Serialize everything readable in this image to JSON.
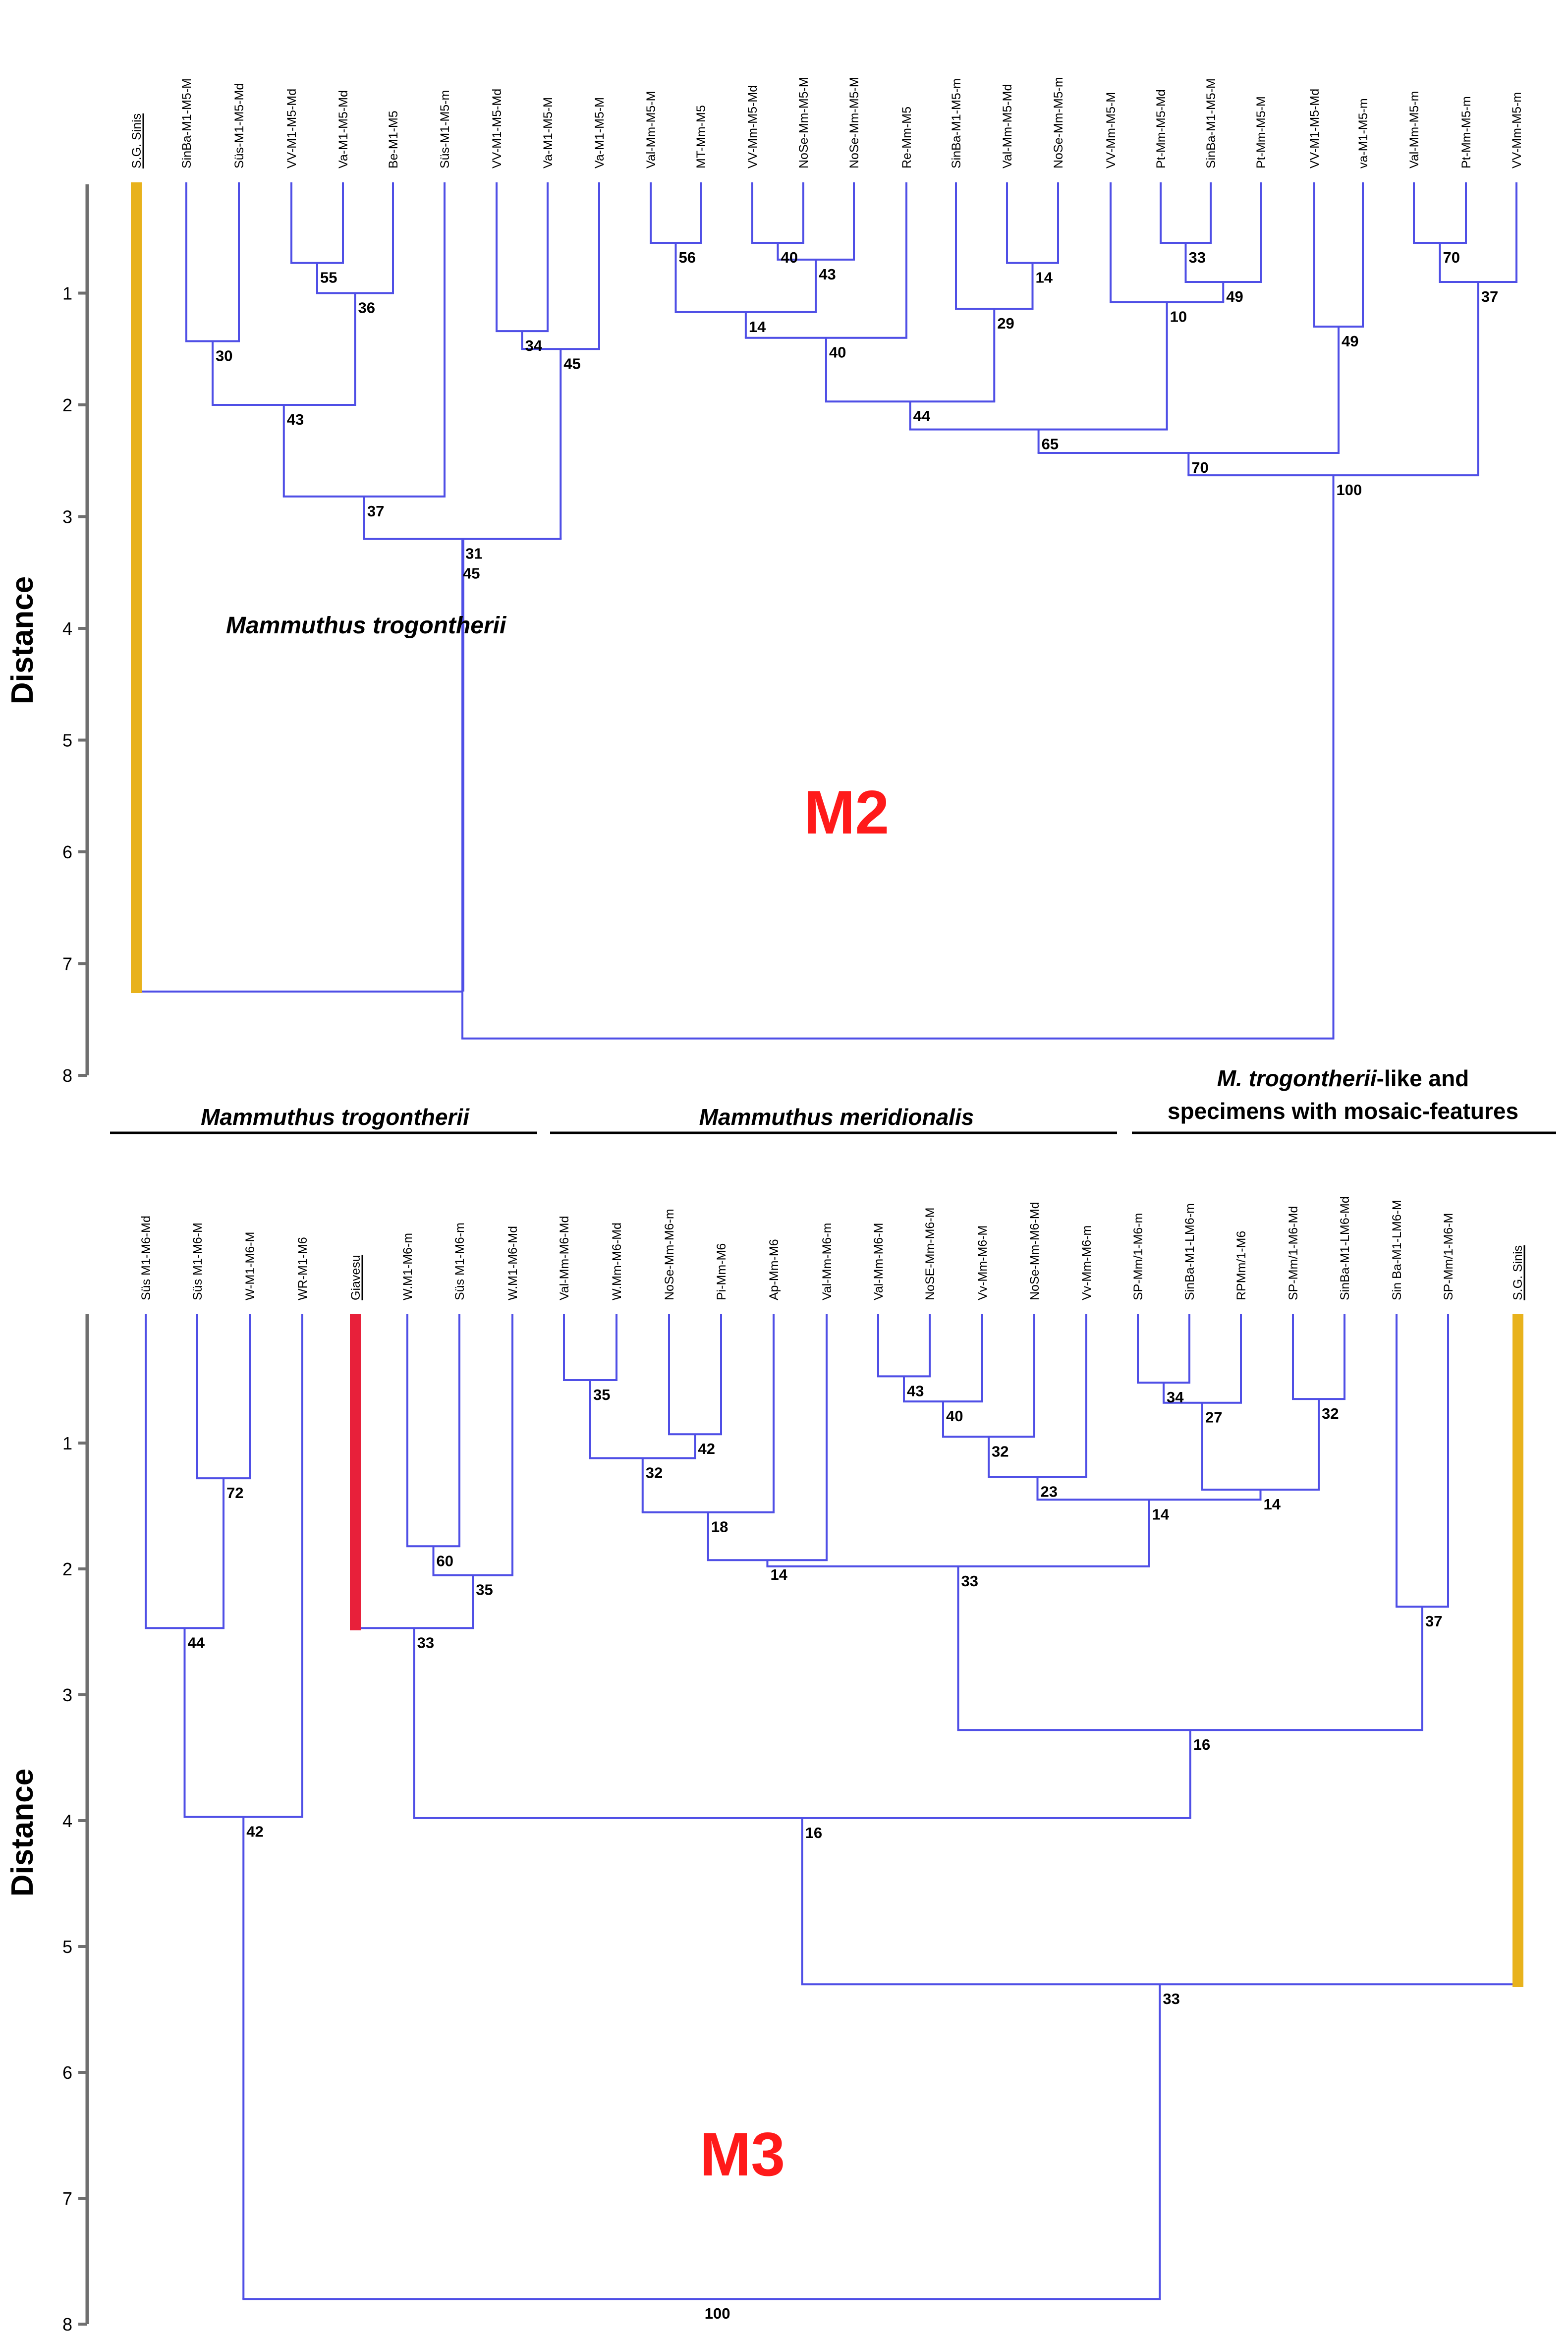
{
  "colors": {
    "branch": "#4f4fe6",
    "axis": "#6f6f6f",
    "outgroup_bar": "#e8b21c",
    "giavesu_bar": "#e8203a",
    "panel_label": "#ff1a1a"
  },
  "m2": {
    "label": "M2",
    "axis_title": "Distance",
    "taxon_label": "Mammuthus trogontherii",
    "ticks": [
      "1",
      "2",
      "3",
      "4",
      "5",
      "6",
      "7",
      "8"
    ],
    "leaves": [
      "S.G. Sinis",
      "SinBa-M1-M5-M",
      "Süs-M1-M5-Md",
      "VV-M1-M5-Md",
      "Va-M1-M5-Md",
      "Be-M1-M5",
      "Süs-M1-M5-m",
      "VV-M1-M5-Md",
      "Va-M1-M5-M",
      "Va-M1-M5-M",
      "Val-Mm-M5-M",
      "MT-Mm-M5",
      "VV-Mm-M5-Md",
      "NoSe-Mm-M5-M",
      "NoSe-Mm-M5-M",
      "Re-Mm-M5",
      "SinBa-M1-M5-m",
      "Val-Mm-M5-Md",
      "NoSe-Mm-M5-m",
      "VV-Mm-M5-M",
      "Pt-Mm-M5-Md",
      "SinBa-M1-M5-M",
      "Pt-Mm-M5-M",
      "VV-M1-M5-Md",
      "va-M1-M5-m",
      "Val-Mm-M5-m",
      "Pt-Mm-M5-m",
      "VV-Mm-M5-m"
    ],
    "bootstrap": [
      "55",
      "36",
      "30",
      "43",
      "37",
      "34",
      "45",
      "31",
      "45",
      "56",
      "40",
      "43",
      "14",
      "40",
      "14",
      "29",
      "44",
      "33",
      "49",
      "10",
      "65",
      "49",
      "70",
      "37",
      "70",
      "100"
    ]
  },
  "m3": {
    "label": "M3",
    "axis_title": "Distance",
    "groups": {
      "trogontherii": "Mammuthus trogontherii",
      "meridionalis": "Mammuthus meridionalis",
      "mosaic_line1_italic": "M. trogontherii",
      "mosaic_line1_rest": "-like and",
      "mosaic_line2": "specimens with mosaic-features"
    },
    "ticks": [
      "1",
      "2",
      "3",
      "4",
      "5",
      "6",
      "7",
      "8"
    ],
    "leaves": [
      "Süs M1-M6-Md",
      "Süs M1-M6-M",
      "W-M1-M6-M",
      "WR-M1-M6",
      "Giavesu",
      "W.M1-M6-m",
      "Süs M1-M6-m",
      "W.M1-M6-Md",
      "Val-Mm-M6-Md",
      "W.Mm-M6-Md",
      "NoSe-Mm-M6-m",
      "Pi-Mm-M6",
      "Ap-Mm-M6",
      "Val-Mm-M6-m",
      "Val-Mm-M6-M",
      "NoSE-Mm-M6-M",
      "Vv-Mm-M6-M",
      "NoSe-Mm-M6-Md",
      "Vv-Mm-M6-m",
      "SP-Mm/1-M6-m",
      "SinBa-M1-LM6-m",
      "RPMm/1-M6",
      "SP-Mm/1-M6-Md",
      "SinBa-M1-LM6-Md",
      "Sin Ba-M1-LM6-M",
      "SP-Mm/1-M6-M",
      "S.G. Sinis"
    ],
    "bootstrap": [
      "72",
      "44",
      "60",
      "35",
      "33",
      "42",
      "35",
      "42",
      "32",
      "18",
      "14",
      "43",
      "40",
      "32",
      "23",
      "34",
      "27",
      "32",
      "14",
      "14",
      "33",
      "37",
      "16",
      "16",
      "33",
      "100"
    ]
  }
}
